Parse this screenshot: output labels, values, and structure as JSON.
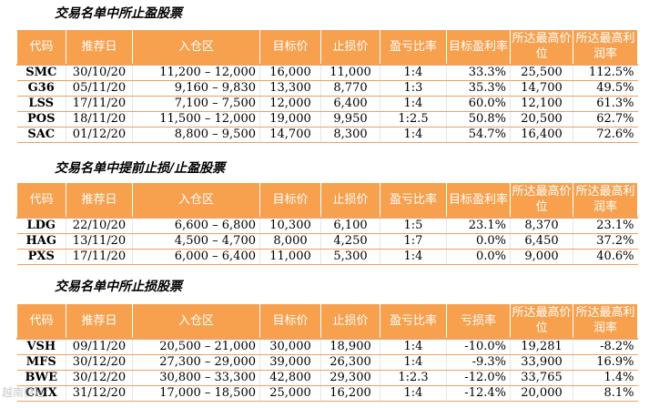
{
  "sections": [
    {
      "title": "交易名单中所止盈股票",
      "headers": [
        "代码",
        "推荐日",
        "入仓区",
        "目标价",
        "止损价",
        "盈亏比率",
        "目标盈利率",
        "所达最高价位",
        "所达最高利润率"
      ],
      "rows": [
        [
          "SMC",
          "30/10/20",
          "11,200 – 12,000",
          "16,000",
          "11,000",
          "1:4",
          "33.3%",
          "25,500",
          "112.5%"
        ],
        [
          "G36",
          "05/11/20",
          "9,160 – 9,830",
          "13,300",
          "8,770",
          "1:3",
          "35.3%",
          "14,700",
          "49.5%"
        ],
        [
          "LSS",
          "17/11/20",
          "7,100 – 7,500",
          "12,000",
          "6,400",
          "1:4",
          "60.0%",
          "12,100",
          "61.3%"
        ],
        [
          "POS",
          "18/11/20",
          "11,500 – 12,000",
          "19,000",
          "9,950",
          "1:2.5",
          "50.8%",
          "20,500",
          "62.7%"
        ],
        [
          "SAC",
          "01/12/20",
          "8,800 – 9,500",
          "14,700",
          "8,300",
          "1:4",
          "54.7%",
          "16,400",
          "72.6%"
        ]
      ]
    },
    {
      "title": "交易名单中提前止损/止盈股票",
      "headers": [
        "代码",
        "推荐日",
        "入仓区",
        "目标价",
        "止损价",
        "盈亏比率",
        "目标盈利率",
        "所达最高价位",
        "所达最高利润率"
      ],
      "rows": [
        [
          "LDG",
          "22/10/20",
          "6,600 – 6,800",
          "10,300",
          "6,100",
          "1:5",
          "23.1%",
          "8,370",
          "23.1%"
        ],
        [
          "HAG",
          "13/11/20",
          "4,500 – 4,700",
          "8,000",
          "4,250",
          "1:7",
          "0.0%",
          "6,450",
          "37.2%"
        ],
        [
          "PXS",
          "17/11/20",
          "6,000 – 6,400",
          "11,000",
          "5,300",
          "1:4",
          "0.0%",
          "9,000",
          "40.6%"
        ]
      ]
    },
    {
      "title": "交易名单中所止损股票",
      "headers": [
        "代码",
        "推荐日",
        "入仓区",
        "目标价",
        "止损价",
        "盈亏比率",
        "亏损率",
        "所达最高价位",
        "所达最高利润率"
      ],
      "rows": [
        [
          "VSH",
          "09/11/20",
          "20,500 – 21,000",
          "30,000",
          "18,900",
          "1:4",
          "-10.0%",
          "19,281",
          "-8.2%"
        ],
        [
          "MFS",
          "30/12/20",
          "27,300 – 29,000",
          "39,000",
          "26,300",
          "1:4",
          "-9.3%",
          "33,900",
          "16.9%"
        ],
        [
          "BWE",
          "30/12/20",
          "30,800 – 33,300",
          "42,800",
          "29,300",
          "1:2.3",
          "-12.0%",
          "33,765",
          "1.4%"
        ],
        [
          "CMX",
          "31/12/20",
          "17,000 – 18,500",
          "25,000",
          "16,200",
          "1:4",
          "-12.4%",
          "20,000",
          "8.1%"
        ]
      ]
    }
  ],
  "watermark": "越南财经"
}
